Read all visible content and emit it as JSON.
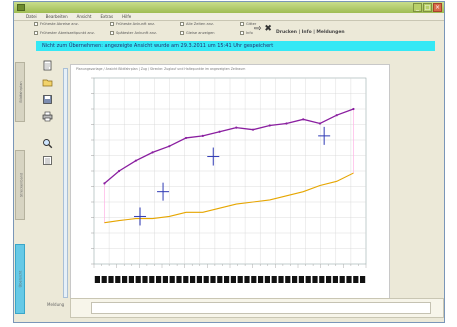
{
  "window": {
    "title": "",
    "buttons": [
      "_",
      "□",
      "×"
    ]
  },
  "menu": [
    {
      "label": "Datei"
    },
    {
      "label": "Bearbeiten"
    },
    {
      "label": "Ansicht"
    },
    {
      "label": "Extras"
    },
    {
      "label": "Hilfe"
    }
  ],
  "options": [
    {
      "label": "Früheste Abreise anz.",
      "col": 0,
      "row": 0
    },
    {
      "label": "Frühester Abreiszeitpunkt anz.",
      "col": 0,
      "row": 1
    },
    {
      "label": "Früheste Ankunft anz.",
      "col": 1,
      "row": 0
    },
    {
      "label": "Spätester Ankunft anz.",
      "col": 1,
      "row": 1
    },
    {
      "label": "Alle Zeiten anz.",
      "col": 2,
      "row": 0
    },
    {
      "label": "Gleise anzeigen",
      "col": 2,
      "row": 1
    },
    {
      "label": "Gitter",
      "col": 3,
      "row": 0
    },
    {
      "label": "Info",
      "col": 3,
      "row": 1
    }
  ],
  "print_label": "Drucken | Info | Meldungen",
  "banner": "Nicht zum Übernehmen: angezeigte Ansicht wurde am 29.3.2011 um 15:41 Uhr gespeichert",
  "subheader": "Planungsvorlage / Ansicht Bildfahrplan | Zug / Strecke: Zuglauf und Haltepunkte im angezeigten Zeitraum",
  "sidebar_tabs": [
    {
      "label": "Bildfahrplan",
      "active": false
    },
    {
      "label": "Streckenband",
      "active": false
    },
    {
      "label": "Übersicht",
      "active": true
    }
  ],
  "toolbar_icons": [
    "new-page-icon",
    "open-folder-icon",
    "save-disk-icon",
    "print-icon",
    "zoom-icon",
    "list-icon"
  ],
  "bottom_label": "Meldung",
  "colors": {
    "banner": "#35e8f5",
    "series_upper": "#8a1fa0",
    "series_lower": "#e6a700",
    "band": "#ffb3e6",
    "marker": "#2f3ab5",
    "active_tab": "#66c9e6"
  },
  "chart_data": {
    "type": "line",
    "series": [
      {
        "points": [
          [
            5,
            59
          ],
          [
            12,
            65
          ],
          [
            20,
            70
          ],
          [
            28,
            74
          ],
          [
            36,
            77
          ],
          [
            44,
            81
          ],
          [
            52,
            82
          ],
          [
            60,
            84
          ],
          [
            68,
            86
          ],
          [
            76,
            85
          ],
          [
            84,
            87
          ],
          [
            92,
            88
          ],
          [
            100,
            90
          ],
          [
            108,
            88
          ],
          [
            116,
            92
          ],
          [
            124,
            95
          ]
        ]
      },
      {
        "points": [
          [
            5,
            40
          ],
          [
            12,
            41
          ],
          [
            20,
            42
          ],
          [
            28,
            42
          ],
          [
            36,
            43
          ],
          [
            44,
            45
          ],
          [
            52,
            45
          ],
          [
            60,
            47
          ],
          [
            68,
            49
          ],
          [
            76,
            50
          ],
          [
            84,
            51
          ],
          [
            92,
            53
          ],
          [
            100,
            55
          ],
          [
            108,
            58
          ],
          [
            116,
            60
          ],
          [
            124,
            64
          ]
        ]
      }
    ],
    "markers": [
      {
        "x": 22,
        "y": 43
      },
      {
        "x": 33,
        "y": 55
      },
      {
        "x": 57,
        "y": 72
      },
      {
        "x": 110,
        "y": 82
      }
    ],
    "xlim": [
      0,
      130
    ],
    "ylim": [
      20,
      110
    ],
    "grid": true,
    "bottom_tracks": 40
  }
}
